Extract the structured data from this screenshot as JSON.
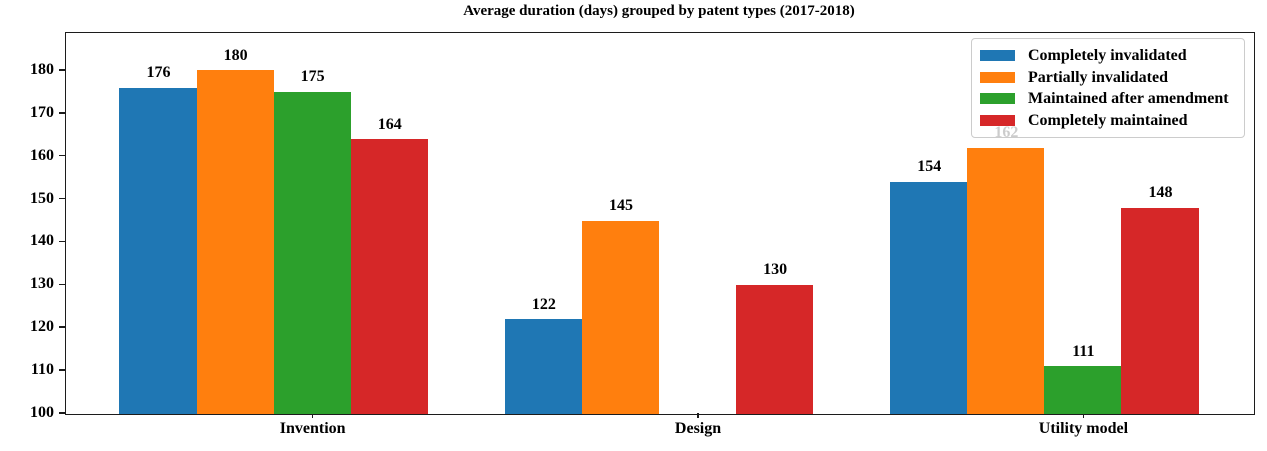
{
  "figure": {
    "background": "#ffffff"
  },
  "chart_data": {
    "type": "bar",
    "title": "Average duration (days) grouped by patent types (2017-2018)",
    "categories": [
      "Invention",
      "Design",
      "Utility model"
    ],
    "series": [
      {
        "name": "Completely invalidated",
        "color": "#1f77b4",
        "values": [
          176,
          122,
          154
        ]
      },
      {
        "name": "Partially invalidated",
        "color": "#ff7f0e",
        "values": [
          180,
          145,
          162
        ]
      },
      {
        "name": "Maintained after amendment",
        "color": "#2ca02c",
        "values": [
          175,
          null,
          111
        ]
      },
      {
        "name": "Completely maintained",
        "color": "#d62728",
        "values": [
          164,
          130,
          148
        ]
      }
    ],
    "y_ticks": [
      100,
      110,
      120,
      130,
      140,
      150,
      160,
      170,
      180
    ],
    "ylim": [
      100,
      188.6
    ],
    "xlabel": "",
    "ylabel": "",
    "grid": false,
    "bar_value_labels": true,
    "legend": {
      "position": "upper right",
      "entries": [
        "Completely invalidated",
        "Partially invalidated",
        "Maintained after amendment",
        "Completely maintained"
      ]
    }
  }
}
